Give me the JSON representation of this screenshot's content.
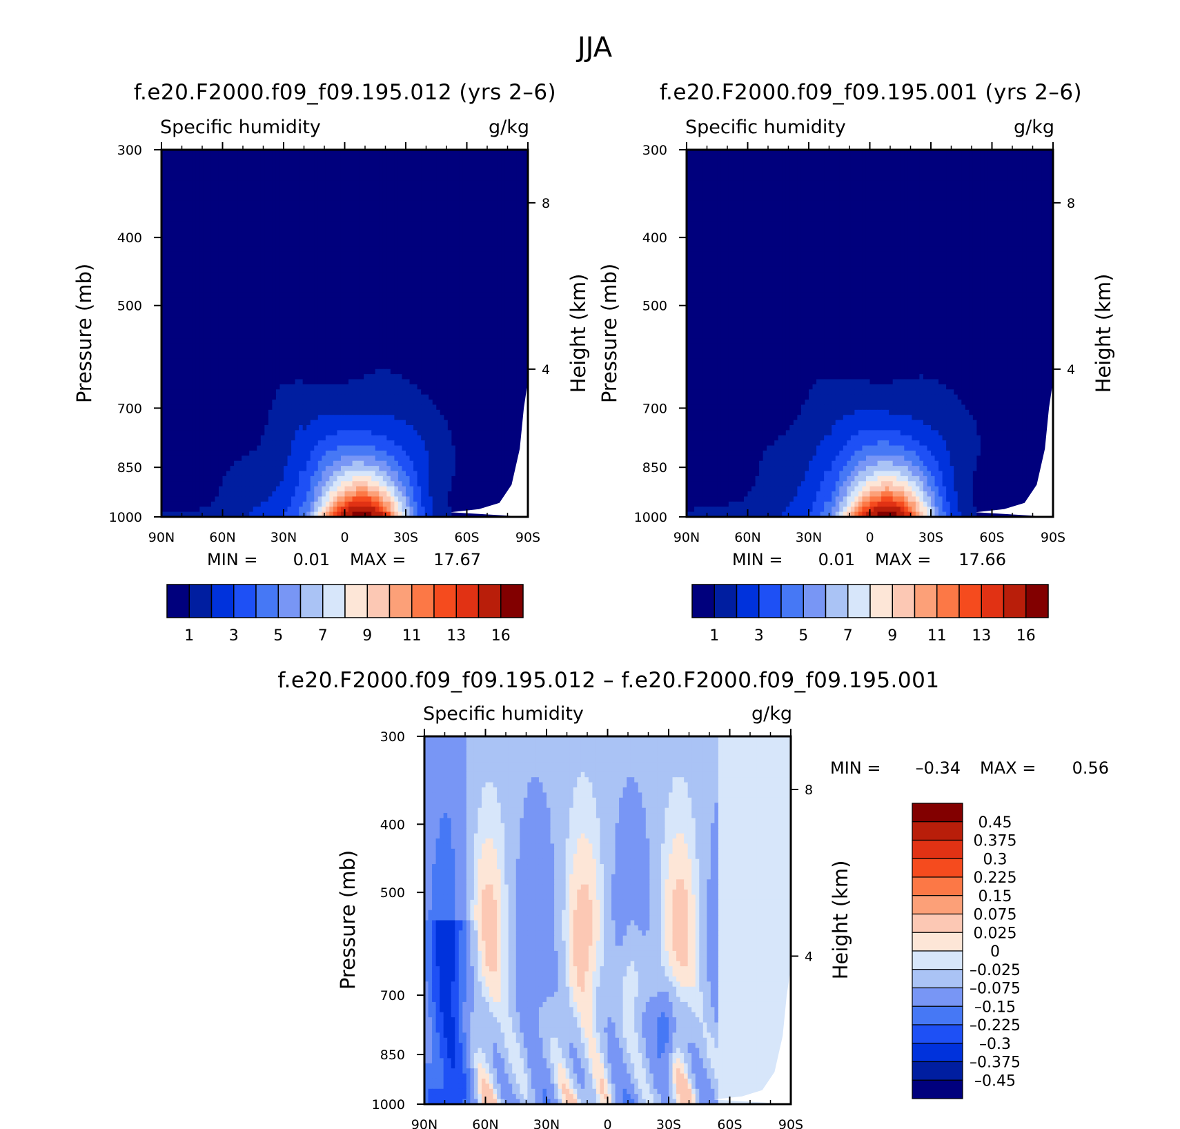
{
  "figure": {
    "title": "JJA"
  },
  "colors": {
    "absolute_scale": [
      "#00007d",
      "#001ea0",
      "#0032dc",
      "#1e50f5",
      "#4678f5",
      "#7896f5",
      "#aac3f5",
      "#d7e6fa",
      "#fde6d7",
      "#fcc8b4",
      "#fca078",
      "#fc7846",
      "#f54b1e",
      "#e13214",
      "#b91e0a",
      "#820000"
    ],
    "difference_scale": [
      "#00007d",
      "#001ea0",
      "#0032dc",
      "#1e50f5",
      "#4678f5",
      "#7896f5",
      "#aac3f5",
      "#d7e6fa",
      "#fde6d7",
      "#fcc8b4",
      "#fca078",
      "#fc7846",
      "#f54b1e",
      "#e13214",
      "#b91e0a",
      "#820000"
    ]
  },
  "chart_data": [
    {
      "type": "heatmap",
      "title": "f.e20.F2000.f09_f09.195.012 (yrs 2–6)",
      "variable": "Specific humidity",
      "units": "g/kg",
      "xlabel": "",
      "ylabel": "Pressure (mb)",
      "ylabel_right": "Height (km)",
      "x_ticks": [
        "90N",
        "60N",
        "30N",
        "0",
        "30S",
        "60S",
        "90S"
      ],
      "y_ticks": [
        "300",
        "400",
        "500",
        "700",
        "850",
        "1000"
      ],
      "y_values": [
        300,
        400,
        500,
        700,
        850,
        1000
      ],
      "ylim": [
        1000,
        300
      ],
      "right_ticks": [
        "8",
        "4"
      ],
      "min_label": "MIN =",
      "min_value": "0.01",
      "max_label": "MAX =",
      "max_value": "17.67",
      "colorbar_labels": [
        "1",
        "3",
        "5",
        "7",
        "9",
        "11",
        "13",
        "16"
      ],
      "contour_levels": [
        1,
        2,
        3,
        4,
        5,
        6,
        7,
        8,
        9,
        10,
        11,
        12,
        13,
        14,
        16
      ],
      "peak_latitude": -8,
      "peak_pressure": 1000
    },
    {
      "type": "heatmap",
      "title": "f.e20.F2000.f09_f09.195.001 (yrs 2–6)",
      "variable": "Specific humidity",
      "units": "g/kg",
      "xlabel": "",
      "ylabel": "Pressure (mb)",
      "ylabel_right": "Height (km)",
      "x_ticks": [
        "90N",
        "60N",
        "30N",
        "0",
        "30S",
        "60S",
        "90S"
      ],
      "y_ticks": [
        "300",
        "400",
        "500",
        "700",
        "850",
        "1000"
      ],
      "y_values": [
        300,
        400,
        500,
        700,
        850,
        1000
      ],
      "ylim": [
        1000,
        300
      ],
      "right_ticks": [
        "8",
        "4"
      ],
      "min_label": "MIN =",
      "min_value": "0.01",
      "max_label": "MAX =",
      "max_value": "17.66",
      "colorbar_labels": [
        "1",
        "3",
        "5",
        "7",
        "9",
        "11",
        "13",
        "16"
      ],
      "contour_levels": [
        1,
        2,
        3,
        4,
        5,
        6,
        7,
        8,
        9,
        10,
        11,
        12,
        13,
        14,
        16
      ],
      "peak_latitude": -8,
      "peak_pressure": 1000
    },
    {
      "type": "heatmap",
      "title": "f.e20.F2000.f09_f09.195.012 – f.e20.F2000.f09_f09.195.001",
      "variable": "Specific humidity",
      "units": "g/kg",
      "xlabel": "",
      "ylabel": "Pressure (mb)",
      "ylabel_right": "Height (km)",
      "x_ticks": [
        "90N",
        "60N",
        "30N",
        "0",
        "30S",
        "60S",
        "90S"
      ],
      "y_ticks": [
        "300",
        "400",
        "500",
        "700",
        "850",
        "1000"
      ],
      "y_values": [
        300,
        400,
        500,
        700,
        850,
        1000
      ],
      "ylim": [
        1000,
        300
      ],
      "right_ticks": [
        "8",
        "4"
      ],
      "min_label": "MIN =",
      "min_value": "–0.34",
      "max_label": "MAX =",
      "max_value": "0.56",
      "colorbar_labels": [
        "0.45",
        "0.375",
        "0.3",
        "0.225",
        "0.15",
        "0.075",
        "0.025",
        "0",
        "–0.025",
        "–0.075",
        "–0.15",
        "–0.225",
        "–0.3",
        "–0.375",
        "–0.45"
      ],
      "contour_levels": [
        -0.45,
        -0.375,
        -0.3,
        -0.225,
        -0.15,
        -0.075,
        -0.025,
        0,
        0.025,
        0.075,
        0.15,
        0.225,
        0.3,
        0.375,
        0.45
      ]
    }
  ]
}
